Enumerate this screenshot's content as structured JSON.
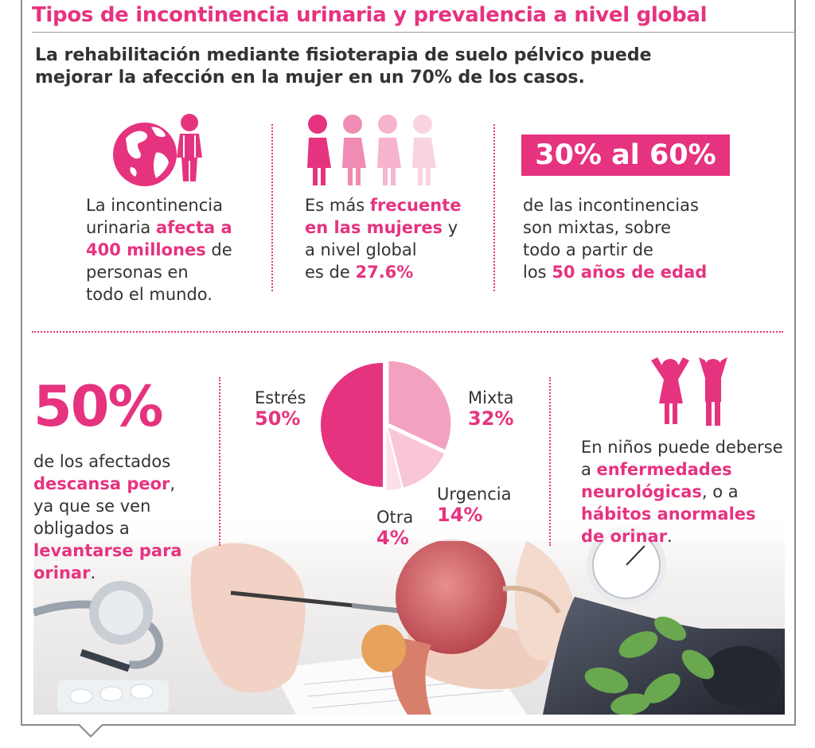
{
  "header": {
    "title": "Tipos de incontinencia urinaria y prevalencia a nivel global",
    "subtitle": "La rehabilitación mediante fisioterapia de suelo pélvico puede mejorar la afección en la mujer en un 70% de los casos."
  },
  "stat1": {
    "icon": "globe-person-icon",
    "l1": "La incontinencia",
    "l2a": "urinaria ",
    "l2b": "afecta a",
    "l3a": "400 millones",
    "l3b": " de",
    "l4": "personas en",
    "l5": "todo el mundo."
  },
  "stat2": {
    "icon": "women-icon",
    "l1a": "Es más ",
    "l1b": "frecuente",
    "l2a": "en las mujeres",
    "l2b": " y",
    "l3": "a nivel global",
    "l4a": "es de ",
    "l4b": "27.6%"
  },
  "stat3": {
    "badge": "30% al 60%",
    "l1": "de las incontinencias",
    "l2": "son mixtas, sobre",
    "l3": "todo a partir de",
    "l4a": "los ",
    "l4b": "50 años de edad"
  },
  "stat4": {
    "big": "50%",
    "l1": "de los afectados",
    "l2a": "descansa peor",
    "l2b": ",",
    "l3": "ya que se ven",
    "l4": "obligados a",
    "l5": "levantarse para",
    "l6a": "orinar",
    "l6b": "."
  },
  "stat5": {
    "icon": "children-icon",
    "l1": "En niños puede deberse",
    "l2a": "a ",
    "l2b": "enfermedades",
    "l3a": "neurológicas",
    "l3b": ", o a",
    "l4": "hábitos anormales",
    "l5a": "de orinar",
    "l5b": "."
  },
  "chart_data": {
    "type": "pie",
    "slices": [
      {
        "label": "Estrés",
        "value": 50,
        "display": "50%",
        "color": "#e6337f"
      },
      {
        "label": "Mixta",
        "value": 32,
        "display": "32%",
        "color": "#f2a2c0"
      },
      {
        "label": "Urgencia",
        "value": 14,
        "display": "14%",
        "color": "#f8c6d8"
      },
      {
        "label": "Otra",
        "value": 4,
        "display": "4%",
        "color": "#fbe0ea"
      }
    ]
  },
  "colors": {
    "accent": "#e6337f",
    "text": "#333333",
    "rule": "#9a9a9a"
  }
}
